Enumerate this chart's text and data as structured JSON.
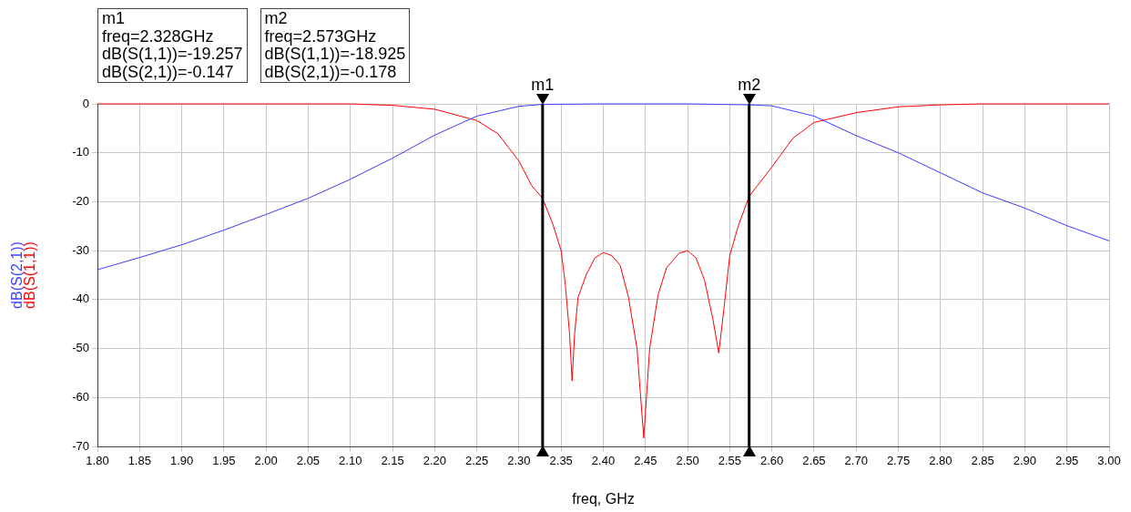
{
  "chart_data": {
    "type": "line",
    "xlabel": "freq, GHz",
    "xlim": [
      1.8,
      3.0
    ],
    "xticks": [
      {
        "value": 1.8,
        "label": "1.80"
      },
      1.85,
      {
        "value": 1.9,
        "label": "1.90"
      },
      1.95,
      {
        "value": 2.0,
        "label": "2.00"
      },
      2.05,
      {
        "value": 2.1,
        "label": "2.10"
      },
      2.15,
      {
        "value": 2.2,
        "label": "2.20"
      },
      2.25,
      {
        "value": 2.3,
        "label": "2.30"
      },
      2.35,
      {
        "value": 2.4,
        "label": "2.40"
      },
      2.45,
      {
        "value": 2.5,
        "label": "2.50"
      },
      2.55,
      {
        "value": 2.6,
        "label": "2.60"
      },
      2.65,
      {
        "value": 2.7,
        "label": "2.70"
      },
      2.75,
      {
        "value": 2.8,
        "label": "2.80"
      },
      2.85,
      {
        "value": 2.9,
        "label": "2.90"
      },
      2.95,
      {
        "value": 3.0,
        "label": "3.00"
      }
    ],
    "ylim": [
      -70,
      0
    ],
    "yticks": [
      -70,
      -60,
      -50,
      -40,
      -30,
      -20,
      -10,
      0
    ],
    "grid": true,
    "legend": false,
    "marker": "none",
    "line_style": "solid",
    "series": [
      {
        "name": "dB(S(2,1))",
        "color": "#3c3cff",
        "x": [
          1.8,
          1.85,
          1.9,
          1.95,
          2.0,
          2.05,
          2.1,
          2.15,
          2.2,
          2.25,
          2.3,
          2.328,
          2.4,
          2.5,
          2.573,
          2.6,
          2.65,
          2.7,
          2.75,
          2.8,
          2.85,
          2.9,
          2.95,
          3.0
        ],
        "values": [
          -33.9,
          -31.4,
          -28.8,
          -25.8,
          -22.6,
          -19.3,
          -15.4,
          -11.1,
          -6.4,
          -2.5,
          -0.5,
          -0.1,
          0,
          0,
          -0.2,
          -0.4,
          -2.5,
          -6.5,
          -10,
          -14.1,
          -18.2,
          -21.3,
          -24.9,
          -28.0
        ]
      },
      {
        "name": "dB(S(1,1))",
        "color": "#ff0000",
        "x": [
          1.8,
          2.05,
          2.1,
          2.15,
          2.2,
          2.25,
          2.275,
          2.3,
          2.315,
          2.328,
          2.34,
          2.35,
          2.355,
          2.36,
          2.363,
          2.366,
          2.37,
          2.38,
          2.39,
          2.4,
          2.41,
          2.42,
          2.43,
          2.44,
          2.448,
          2.455,
          2.465,
          2.475,
          2.49,
          2.5,
          2.51,
          2.52,
          2.53,
          2.537,
          2.543,
          2.55,
          2.56,
          2.573,
          2.6,
          2.625,
          2.65,
          2.7,
          2.75,
          2.8,
          2.85,
          3.0
        ],
        "values": [
          0,
          0,
          0,
          -0.3,
          -1.1,
          -3.4,
          -6.1,
          -11.7,
          -16.7,
          -19.3,
          -24.5,
          -30,
          -37,
          -47,
          -56.6,
          -47,
          -39.6,
          -34.8,
          -31.5,
          -30.4,
          -31,
          -33,
          -39.6,
          -50,
          -68.3,
          -50,
          -39,
          -33.5,
          -30.5,
          -30,
          -31.5,
          -36,
          -44,
          -50.9,
          -42,
          -31,
          -25,
          -18.9,
          -12.9,
          -7,
          -3.8,
          -1.8,
          -0.6,
          -0.2,
          0,
          0
        ]
      }
    ],
    "ref_lines": [
      {
        "axis": "x",
        "value": 2.328,
        "label": "m1",
        "color": "#000000"
      },
      {
        "axis": "x",
        "value": 2.573,
        "label": "m2",
        "color": "#000000"
      }
    ],
    "annotations": [
      "m1\nfreq=2.328GHz\ndB(S(1,1))=-19.257\ndB(S(2,1))=-0.147",
      "m2\nfreq=2.573GHz\ndB(S(1,1))=-18.925\ndB(S(2,1))=-0.178"
    ]
  }
}
